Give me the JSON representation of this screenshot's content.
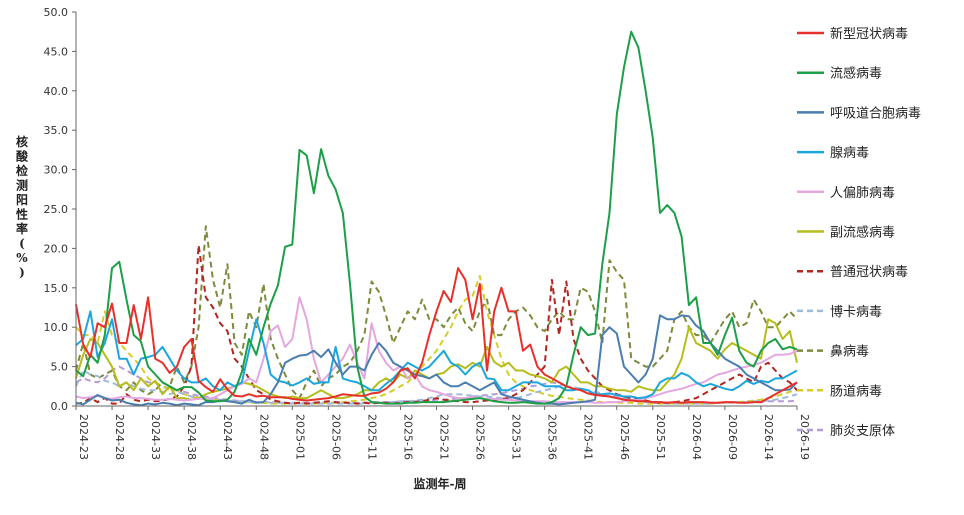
{
  "chart_data": {
    "type": "line",
    "title": "",
    "xlabel": "监测年-周",
    "ylabel": "核酸检测阳性率(%)",
    "ylim": [
      0,
      50
    ],
    "yticks": [
      "0.0",
      "5.0",
      "10.0",
      "15.0",
      "20.0",
      "25.0",
      "30.0",
      "35.0",
      "40.0",
      "45.0",
      "50.0"
    ],
    "legend_position": "right",
    "x_tick_labels": [
      "2024-23",
      "2024-28",
      "2024-33",
      "2024-38",
      "2024-43",
      "2024-48",
      "2025-01",
      "2025-06",
      "2025-11",
      "2025-16",
      "2025-21",
      "2025-26",
      "2025-31",
      "2025-36",
      "2025-41",
      "2025-46",
      "2025-51",
      "2026-04",
      "2026-09",
      "2026-14",
      "2026-19"
    ],
    "weeks": [
      "2024-23",
      "2024-24",
      "2024-25",
      "2024-26",
      "2024-27",
      "2024-28",
      "2024-29",
      "2024-30",
      "2024-31",
      "2024-32",
      "2024-33",
      "2024-34",
      "2024-35",
      "2024-36",
      "2024-37",
      "2024-38",
      "2024-39",
      "2024-40",
      "2024-41",
      "2024-42",
      "2024-43",
      "2024-44",
      "2024-45",
      "2024-46",
      "2024-47",
      "2024-48",
      "2024-49",
      "2024-50",
      "2024-51",
      "2024-52",
      "2025-01",
      "2025-02",
      "2025-03",
      "2025-04",
      "2025-05",
      "2025-06",
      "2025-07",
      "2025-08",
      "2025-09",
      "2025-10",
      "2025-11",
      "2025-12",
      "2025-13",
      "2025-14",
      "2025-15",
      "2025-16",
      "2025-17",
      "2025-18",
      "2025-19",
      "2025-20",
      "2025-21",
      "2025-22",
      "2025-23",
      "2025-24",
      "2025-25",
      "2025-26",
      "2025-27",
      "2025-28",
      "2025-29",
      "2025-30",
      "2025-31",
      "2025-32",
      "2025-33",
      "2025-34",
      "2025-35",
      "2025-36",
      "2025-37",
      "2025-38",
      "2025-39",
      "2025-40",
      "2025-41",
      "2025-42",
      "2025-43",
      "2025-44",
      "2025-45",
      "2025-46",
      "2025-47",
      "2025-48",
      "2025-49",
      "2025-50",
      "2025-51",
      "2025-52",
      "2026-01",
      "2026-02",
      "2026-03",
      "2026-04",
      "2026-05",
      "2026-06",
      "2026-07",
      "2026-08",
      "2026-09",
      "2026-10",
      "2026-11",
      "2026-12",
      "2026-13",
      "2026-14",
      "2026-15",
      "2026-16",
      "2026-17",
      "2026-18",
      "2026-19"
    ],
    "series": [
      {
        "name": "新型冠状病毒",
        "color": "#e8302a",
        "dash": false,
        "values": [
          12.9,
          7.8,
          6.2,
          10.5,
          10,
          13,
          8,
          8,
          12.8,
          8.5,
          13.8,
          6,
          5.5,
          4.2,
          5,
          7.5,
          8.5,
          3.2,
          2.4,
          1.8,
          3.4,
          2.1,
          1.3,
          1.2,
          1.5,
          1.2,
          1.3,
          1.1,
          1.1,
          1.1,
          0.9,
          0.8,
          0.7,
          0.8,
          0.9,
          1,
          1.2,
          1.5,
          1.4,
          1.3,
          1.3,
          1.6,
          1.7,
          2.2,
          3,
          4.5,
          4.8,
          3.5,
          5.5,
          9,
          12,
          14.6,
          13.2,
          17.5,
          16,
          11,
          15.5,
          4.5,
          12,
          15,
          12,
          12,
          7,
          7.8,
          5,
          4,
          3.5,
          3,
          2.5,
          2.2,
          2,
          1.6,
          1.4,
          1.3,
          1.2,
          1,
          0.8,
          0.7,
          0.6,
          0.6,
          0.5,
          0.5,
          0.4,
          0.5,
          0.4,
          0.5,
          0.5,
          0.5,
          0.4,
          0.4,
          0.5,
          0.5,
          0.4,
          0.4,
          0.5,
          0.5,
          1,
          1.5,
          2,
          2.5,
          3
        ]
      },
      {
        "name": "流感病毒",
        "color": "#1d9f48",
        "dash": false,
        "values": [
          4.5,
          3.8,
          6.5,
          5.5,
          9,
          17.5,
          18.3,
          13.5,
          9,
          8.2,
          5,
          4,
          3,
          2.5,
          2,
          2.4,
          2.4,
          1.7,
          0.7,
          0.6,
          0.6,
          0.8,
          1.8,
          4.3,
          8.5,
          6.5,
          10,
          13,
          15.3,
          20.2,
          20.5,
          32.5,
          31.8,
          27,
          32.6,
          29.2,
          27.5,
          24.5,
          15.5,
          5,
          1.2,
          0.5,
          0.4,
          0.3,
          0.3,
          0.3,
          0.4,
          0.4,
          0.5,
          0.5,
          0.5,
          0.5,
          0.6,
          0.7,
          0.8,
          0.9,
          1,
          0.8,
          0.6,
          0.5,
          0.4,
          0.4,
          0.5,
          0.4,
          0.3,
          0.3,
          0.5,
          1,
          2.5,
          6.5,
          10,
          9,
          9.2,
          18,
          24.5,
          37,
          43,
          47.5,
          45.5,
          40,
          34,
          24.5,
          25.5,
          24.5,
          21.5,
          12.8,
          13.8,
          8,
          8,
          6.5,
          9,
          11.2,
          7,
          5.5,
          5,
          7,
          8,
          8.5,
          7.2,
          7.5,
          7.2
        ]
      },
      {
        "name": "呼吸道合胞病毒",
        "color": "#4a7eb0",
        "dash": false,
        "values": [
          0.4,
          0.2,
          0.8,
          1.4,
          1,
          0.7,
          0.8,
          0.4,
          0.2,
          0.1,
          0.3,
          0.2,
          0.4,
          0.3,
          0.1,
          0.3,
          0.2,
          0.1,
          0.5,
          0.5,
          0.7,
          0.6,
          0.5,
          0.3,
          0.8,
          0.4,
          0.5,
          1.5,
          3,
          5.5,
          6,
          6.4,
          6.5,
          7,
          6.2,
          7.2,
          5.5,
          4,
          5,
          5,
          4.5,
          6.5,
          8,
          7,
          5.5,
          5,
          4.5,
          4,
          3.8,
          3.5,
          4,
          3,
          2.5,
          2.5,
          3,
          2.5,
          2,
          2.5,
          3,
          1.5,
          1.2,
          1,
          0.8,
          0.6,
          0.4,
          0.3,
          0.3,
          0.2,
          0.3,
          0.4,
          0.5,
          0.6,
          0.8,
          9,
          10,
          9.2,
          5,
          4,
          3,
          4,
          6,
          11.5,
          11,
          11,
          11.5,
          11.4,
          10.2,
          9.5,
          8,
          7,
          6,
          5.5,
          5,
          4,
          3.5,
          3,
          2.5,
          2,
          2,
          2.1,
          3
        ]
      },
      {
        "name": "腺病毒",
        "color": "#1ba7dd",
        "dash": false,
        "values": [
          7.7,
          8.5,
          12,
          6.2,
          8,
          11,
          6,
          6,
          4,
          6,
          6.2,
          6.5,
          7.5,
          6,
          4.5,
          3.5,
          3,
          3,
          3.5,
          2.5,
          2,
          3,
          2.5,
          3,
          7,
          11,
          8,
          4,
          3.2,
          3,
          2.6,
          3,
          3.5,
          2.8,
          3,
          3,
          7.5,
          3.5,
          3.2,
          3,
          2.5,
          2,
          2,
          2.8,
          3.5,
          4.5,
          5.5,
          5,
          4.5,
          5,
          6,
          7,
          5.5,
          5,
          4,
          5,
          5.5,
          3.5,
          3.4,
          2,
          2,
          2.5,
          3,
          3,
          3,
          2.5,
          2.5,
          2.5,
          2,
          2,
          2.2,
          2,
          1.5,
          1.5,
          1.6,
          1.4,
          1.2,
          1.2,
          1,
          1.1,
          1.5,
          3,
          3.5,
          3.5,
          4.2,
          3.8,
          3,
          2.5,
          2.8,
          2.5,
          2.2,
          2,
          2.5,
          3.2,
          2.8,
          3.2,
          3,
          3.5,
          3.5,
          4,
          4.5
        ]
      },
      {
        "name": "人偏肺病毒",
        "color": "#e4a7e0",
        "dash": false,
        "values": [
          1.2,
          1,
          1.1,
          1.3,
          1,
          0.9,
          1.1,
          1.2,
          1,
          1,
          0.9,
          0.8,
          0.8,
          0.9,
          0.8,
          0.7,
          0.8,
          0.9,
          1,
          1,
          1.5,
          2,
          2.5,
          2.8,
          3.5,
          3,
          6,
          9.5,
          10.2,
          7.5,
          8.5,
          13.8,
          11,
          6,
          3,
          4,
          5,
          6,
          7.8,
          5.5,
          3.5,
          10.5,
          7,
          5.5,
          4.5,
          5,
          3.5,
          4,
          2.5,
          2,
          1.8,
          1.5,
          1.2,
          1,
          1,
          1.1,
          1,
          0.9,
          0.9,
          0.8,
          0.8,
          0.7,
          0.7,
          0.6,
          0.6,
          0.6,
          0.5,
          0.5,
          0.5,
          0.5,
          0.5,
          0.5,
          0.4,
          0.4,
          0.5,
          0.5,
          0.6,
          0.7,
          0.8,
          1,
          1.2,
          1.5,
          1.8,
          2,
          2.2,
          2.5,
          2.8,
          3,
          3.5,
          4,
          4.2,
          4.5,
          4.8,
          5,
          5.2,
          5.5,
          6,
          6.5,
          6.5,
          6.6,
          7
        ]
      },
      {
        "name": "副流感病毒",
        "color": "#b6bd1a",
        "dash": false,
        "values": [
          3.5,
          6.5,
          8.5,
          8,
          6.5,
          5,
          2.5,
          3,
          2,
          3.5,
          2.5,
          3.2,
          1.5,
          2.5,
          1,
          1,
          0.8,
          1,
          1.5,
          1.8,
          2,
          2.2,
          2.5,
          3,
          2.8,
          2.5,
          2,
          1.5,
          1.2,
          1,
          1.2,
          1,
          1,
          1.5,
          2,
          1.5,
          1,
          1,
          1.2,
          1.5,
          2,
          2,
          3,
          3.5,
          3,
          4,
          3.5,
          4.5,
          4,
          3.5,
          4,
          4.2,
          5,
          5.3,
          4.8,
          5.5,
          5,
          7.5,
          5.6,
          5,
          5.5,
          4.5,
          4.5,
          4,
          3.8,
          3.5,
          3,
          4.5,
          5,
          4,
          3,
          3,
          2.5,
          2.5,
          2.2,
          2,
          2,
          1.8,
          2.5,
          2.2,
          2,
          2,
          3,
          4,
          6,
          10,
          8,
          7.5,
          7,
          6,
          7.2,
          8,
          7.5,
          7,
          6.5,
          6,
          11,
          10.5,
          8.5,
          9.5,
          5.5
        ]
      },
      {
        "name": "普通冠状病毒",
        "color": "#b4251f",
        "dash": true,
        "values": [
          0.3,
          0.4,
          1,
          0.5,
          1,
          0.3,
          0.3,
          1.5,
          0.8,
          0.6,
          0.8,
          0.6,
          0.7,
          0.9,
          1.2,
          2.5,
          5,
          20.4,
          13.8,
          12.5,
          10.5,
          9.5,
          6,
          5,
          3.5,
          2,
          1.5,
          0.8,
          0.6,
          0.4,
          0.3,
          0.4,
          0.3,
          0.4,
          0.5,
          0.6,
          0.5,
          0.4,
          0.4,
          0.3,
          0.4,
          0.3,
          0.4,
          0.4,
          0.3,
          0.4,
          0.5,
          0.5,
          0.6,
          0.8,
          1,
          0.8,
          0.7,
          0.6,
          0.5,
          0.5,
          0.6,
          0.7,
          0.8,
          0.9,
          1,
          1.5,
          2,
          3,
          4,
          5,
          16,
          9,
          15.8,
          8.5,
          6,
          4.5,
          3.5,
          2.5,
          2,
          1.5,
          1.2,
          1,
          0.8,
          0.7,
          0.5,
          0.4,
          0.4,
          0.5,
          0.6,
          0.8,
          1,
          1.5,
          2,
          2.5,
          3,
          3.5,
          4,
          3.5,
          3,
          5,
          5.5,
          4.5,
          3.5,
          3,
          2
        ]
      },
      {
        "name": "博卡病毒",
        "color": "#9fbbd9",
        "dash": true,
        "values": [
          2.5,
          4.5,
          4,
          3.8,
          3.2,
          3,
          2.5,
          3,
          2.5,
          2.2,
          2,
          2,
          1.8,
          1.5,
          1.8,
          1.5,
          1.2,
          1,
          1,
          0.8,
          0.8,
          0.7,
          0.6,
          0.6,
          0.5,
          0.5,
          0.5,
          0.4,
          0.4,
          0.4,
          0.3,
          0.3,
          0.3,
          0.3,
          0.3,
          0.3,
          0.3,
          0.3,
          0.3,
          0.3,
          0.3,
          0.4,
          0.4,
          0.5,
          0.5,
          0.6,
          0.6,
          0.7,
          0.8,
          1,
          1.2,
          1.5,
          1.5,
          1.5,
          1.4,
          1.3,
          1.2,
          1.2,
          1.1,
          1,
          1,
          1,
          1.2,
          1.5,
          1.8,
          2,
          2.2,
          2.5,
          2.5,
          2.4,
          2.2,
          2,
          1.8,
          1.6,
          1.4,
          1.2,
          1,
          0.8,
          0.6,
          0.5,
          0.4,
          0.4,
          0.3,
          0.3,
          0.3,
          0.3,
          0.3,
          0.3,
          0.3,
          0.4,
          0.4,
          0.5,
          0.5,
          0.5,
          0.6,
          0.6,
          0.7,
          0.8,
          1,
          1.2,
          1.5
        ]
      },
      {
        "name": "鼻病毒",
        "color": "#7c8b3c",
        "dash": true,
        "values": [
          4.5,
          8,
          4,
          3.5,
          4,
          4.5,
          2.5,
          2,
          3,
          2,
          1.5,
          2,
          3,
          2.5,
          5,
          3,
          5,
          10,
          22.8,
          16,
          12.5,
          18,
          8,
          6.5,
          12,
          10,
          15.5,
          8.5,
          6,
          4,
          2,
          1,
          3,
          4.5,
          2.5,
          3.5,
          4,
          5,
          5.5,
          7,
          9,
          15.8,
          14.5,
          11.5,
          8,
          10,
          12,
          11,
          13.5,
          11,
          11,
          10,
          11.5,
          12.5,
          10.5,
          9.5,
          12,
          13.5,
          9,
          9,
          11,
          12,
          12.5,
          11.5,
          10,
          9.5,
          11,
          12,
          11,
          11,
          15,
          14.5,
          12,
          8,
          18.5,
          17,
          16,
          6,
          5.5,
          5,
          5,
          6,
          7,
          11,
          12,
          10,
          9,
          9,
          8,
          9.5,
          11,
          12,
          10,
          10.5,
          13.5,
          12,
          10,
          10,
          11,
          12,
          11
        ]
      },
      {
        "name": "肠道病毒",
        "color": "#d6cd2a",
        "dash": true,
        "values": [
          10,
          9,
          9,
          8,
          12,
          9,
          8,
          7,
          6,
          5,
          3.5,
          3,
          2.5,
          2,
          2,
          1.5,
          1.2,
          1,
          0.8,
          0.8,
          0.7,
          0.6,
          0.5,
          0.5,
          0.4,
          0.4,
          0.4,
          0.3,
          0.3,
          0.3,
          0.3,
          0.3,
          0.3,
          0.3,
          0.3,
          0.4,
          0.4,
          0.5,
          0.6,
          0.7,
          0.8,
          1,
          1.2,
          1.5,
          2,
          2.5,
          3,
          4,
          5,
          6,
          7,
          8.5,
          10,
          12,
          13.5,
          14,
          16.5,
          12,
          9,
          6,
          4,
          3,
          2.5,
          2,
          1.8,
          1.5,
          1.3,
          1.2,
          1,
          0.9,
          0.8,
          0.7,
          0.6,
          0.5,
          0.5,
          0.4,
          0.4,
          0.4,
          0.3,
          0.3,
          0.3,
          0.3,
          0.3,
          0.3,
          0.3,
          0.3,
          0.3,
          0.3,
          0.3,
          0.4,
          0.4,
          0.5,
          0.5,
          0.6,
          0.7,
          0.8,
          1,
          1.2,
          1.5,
          1.8,
          2
        ]
      },
      {
        "name": "肺炎支原体",
        "color": "#b59bd6",
        "dash": true,
        "values": [
          3,
          3.5,
          3.2,
          3,
          3.5,
          4.5,
          5,
          4.5,
          4,
          3.5,
          3,
          3,
          2.5,
          2.2,
          2,
          1.8,
          1.5,
          1.3,
          1.2,
          1,
          0.9,
          0.8,
          0.7,
          0.6,
          0.6,
          0.5,
          0.5,
          0.5,
          0.4,
          0.4,
          0.4,
          0.4,
          0.4,
          0.4,
          0.4,
          0.4,
          0.4,
          0.4,
          0.4,
          0.4,
          0.4,
          0.5,
          0.5,
          0.5,
          0.5,
          0.6,
          0.6,
          0.6,
          0.7,
          0.7,
          0.8,
          0.8,
          0.9,
          1,
          1,
          1.2,
          1.3,
          1.4,
          1.5,
          1.6,
          1.8,
          2,
          2.2,
          2.5,
          2.6,
          2.8,
          3,
          2.8,
          2.5,
          2.2,
          2,
          1.8,
          1.5,
          1.3,
          1.2,
          1,
          0.9,
          0.8,
          0.7,
          0.6,
          0.5,
          0.5,
          0.4,
          0.4,
          0.4,
          0.4,
          0.4,
          0.4,
          0.4,
          0.4,
          0.4,
          0.4,
          0.5,
          0.5,
          0.5,
          0.5,
          0.6,
          0.6,
          0.6,
          0.6,
          0.7
        ]
      }
    ]
  }
}
